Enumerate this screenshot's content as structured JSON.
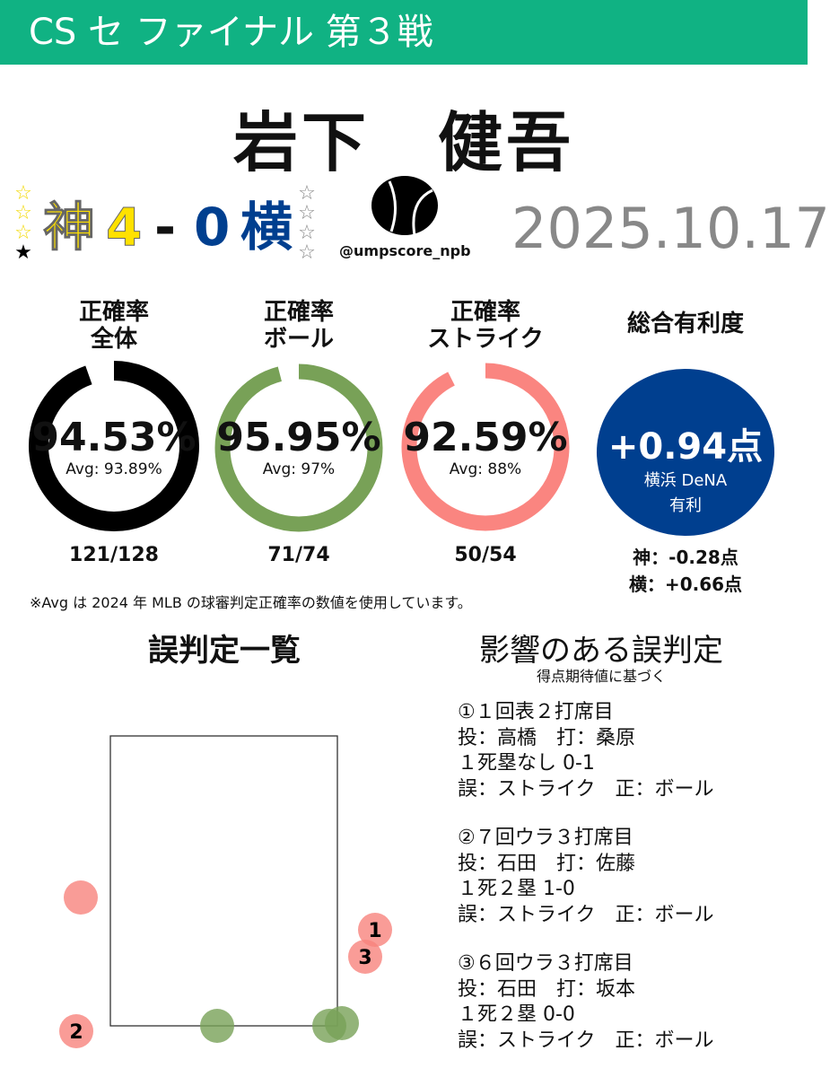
{
  "header": {
    "title": "CS セ ファイナル 第３戦",
    "bg": "#10b283"
  },
  "umpire_name": "岩下　健吾",
  "game": {
    "home_stars": "☆☆☆★",
    "home_team": "神",
    "home_score": "4",
    "dash": "-",
    "away_score": "0",
    "away_team": "横",
    "away_stars": "☆☆☆☆",
    "home_color": "#ffe100",
    "away_color": "#003f8f",
    "date": "2025.10.17"
  },
  "brand": {
    "logo": "ball-logo-icon",
    "handle": "@umpscore_npb"
  },
  "stats": [
    {
      "label1": "正確率",
      "label2": "全体",
      "value": "94.53%",
      "pct": 94.53,
      "avg": "Avg: 93.89%",
      "fraction": "121/128",
      "color": "#000000"
    },
    {
      "label1": "正確率",
      "label2": "ボール",
      "value": "95.95%",
      "pct": 95.95,
      "avg": "Avg: 97%",
      "fraction": "71/74",
      "color": "#78a157"
    },
    {
      "label1": "正確率",
      "label2": "ストライク",
      "value": "92.59%",
      "pct": 92.59,
      "avg": "Avg: 88%",
      "fraction": "50/54",
      "color": "#fa8580"
    }
  ],
  "favor": {
    "label": "総合有利度",
    "value": "+0.94点",
    "team": "横浜 DeNA",
    "suffix": "有利",
    "home": "神：-0.28点",
    "away": "横：+0.66点",
    "color": "#003f8f"
  },
  "note": "※Avg は 2024 年 MLB の球審判定正確率の数値を使用しています。",
  "misses_title": "誤判定一覧",
  "impact": {
    "title": "影響のある誤判定",
    "subtitle": "得点期待値に基づく",
    "items": [
      {
        "l1": "①１回表２打席目",
        "l2": "投：高橋　打：桑原",
        "l3": "１死塁なし 0-1",
        "l4": "誤：ストライク　正：ボール"
      },
      {
        "l1": "②７回ウラ３打席目",
        "l2": "投：石田　打：佐藤",
        "l3": "１死２塁 1-0",
        "l4": "誤：ストライク　正：ボール"
      },
      {
        "l1": "③６回ウラ３打席目",
        "l2": "投：石田　打：坂本",
        "l3": "１死２塁 0-0",
        "l4": "誤：ストライク　正：ボール"
      }
    ]
  },
  "pitches": [
    {
      "call": "strike",
      "label": ""
    },
    {
      "call": "strike",
      "label": "1"
    },
    {
      "call": "strike",
      "label": "3"
    },
    {
      "call": "strike",
      "label": "2"
    },
    {
      "call": "ball",
      "label": ""
    },
    {
      "call": "ball",
      "label": ""
    },
    {
      "call": "ball",
      "label": ""
    }
  ]
}
